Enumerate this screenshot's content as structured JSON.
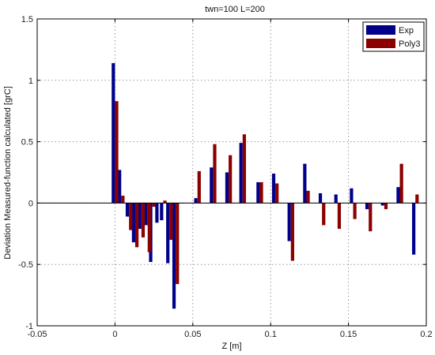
{
  "chart_data": {
    "type": "bar",
    "title": "twn=100 L=200",
    "xlabel": "Z [m]",
    "ylabel": "Deviation Measured-function calculated [grC]",
    "xlim": [
      -0.05,
      0.2
    ],
    "ylim": [
      -1,
      1.5
    ],
    "xticks": [
      -0.05,
      0,
      0.05,
      0.1,
      0.15,
      0.2
    ],
    "xtick_labels": [
      "-0.05",
      "0",
      "0.05",
      "0.1",
      "0.15",
      "0.2"
    ],
    "yticks": [
      -1,
      -0.5,
      0,
      0.5,
      1,
      1.5
    ],
    "ytick_labels": [
      "-1",
      "-0.5",
      "0",
      "0.5",
      "1",
      "1.5"
    ],
    "grid": true,
    "legend_position": "top-right",
    "x": [
      0,
      0.004,
      0.009,
      0.013,
      0.017,
      0.021,
      0.024,
      0.028,
      0.031,
      0.035,
      0.039,
      0.043,
      0.053,
      0.063,
      0.073,
      0.082,
      0.093,
      0.103,
      0.113,
      0.123,
      0.133,
      0.143,
      0.153,
      0.163,
      0.173,
      0.183,
      0.193
    ],
    "series": [
      {
        "name": "Exp",
        "color": "#00008b",
        "values": [
          1.14,
          0.27,
          -0.11,
          -0.32,
          -0.21,
          -0.18,
          -0.48,
          -0.16,
          -0.14,
          -0.49,
          -0.86,
          0.0,
          0.04,
          0.29,
          0.25,
          0.49,
          0.17,
          0.24,
          -0.31,
          0.32,
          0.08,
          0.07,
          0.12,
          -0.05,
          -0.02,
          0.13,
          -0.42
        ]
      },
      {
        "name": "Poly3",
        "color": "#8b0000",
        "values": [
          0.83,
          0.06,
          -0.22,
          -0.36,
          -0.28,
          -0.4,
          -0.03,
          0.0,
          0.02,
          -0.3,
          -0.66,
          0.0,
          0.26,
          0.48,
          0.39,
          0.56,
          0.17,
          0.16,
          -0.47,
          0.1,
          -0.18,
          -0.21,
          -0.13,
          -0.23,
          -0.05,
          0.32,
          0.07
        ]
      }
    ]
  }
}
